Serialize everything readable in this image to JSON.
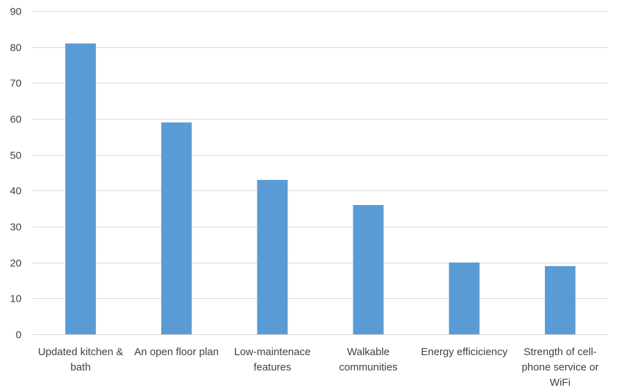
{
  "chart_data": {
    "type": "bar",
    "categories": [
      [
        "Updated kitchen &",
        "bath"
      ],
      [
        "An open floor plan"
      ],
      [
        "Low-maintenace",
        "features"
      ],
      [
        "Walkable",
        "communities"
      ],
      [
        "Energy efficiciency"
      ],
      [
        "Strength of cell-",
        "phone service or",
        "WiFi"
      ]
    ],
    "values": [
      81,
      59,
      43,
      36,
      20,
      19
    ],
    "ylim": [
      0,
      90
    ],
    "yticks": [
      0,
      10,
      20,
      30,
      40,
      50,
      60,
      70,
      80,
      90
    ],
    "grid": true,
    "colors": {
      "bar": "#5b9bd5",
      "grid": "#d9d9d9",
      "text": "#404040"
    }
  }
}
